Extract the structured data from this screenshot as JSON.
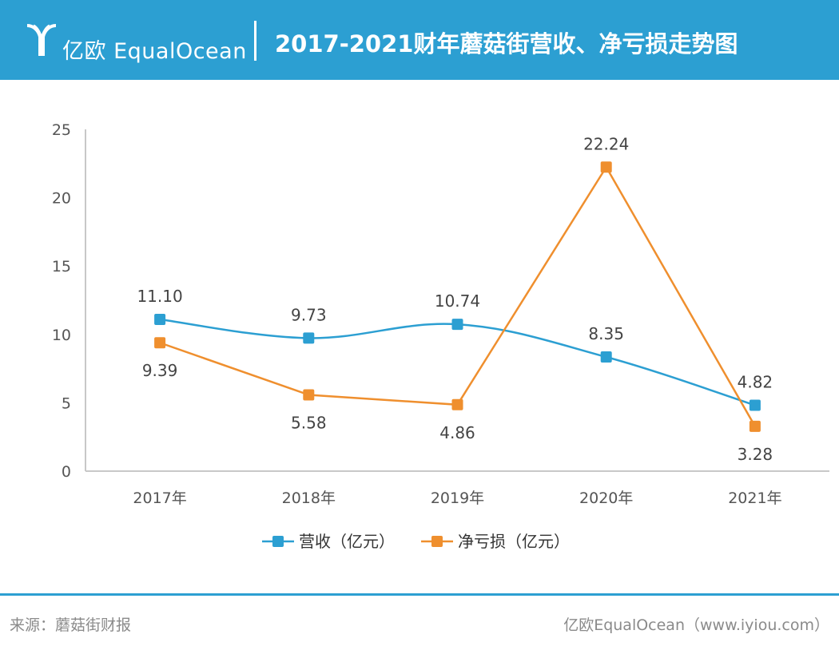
{
  "header": {
    "brand": "亿欧 EqualOcean",
    "title": "2017-2021财年蘑菇街营收、净亏损走势图"
  },
  "chart_data": {
    "type": "line",
    "title": "2017-2021财年蘑菇街营收、净亏损走势图",
    "categories": [
      "2017年",
      "2018年",
      "2019年",
      "2020年",
      "2021年"
    ],
    "ylim": [
      0,
      25
    ],
    "yticks": [
      0,
      5,
      10,
      15,
      20,
      25
    ],
    "grid": false,
    "legend": "bottom",
    "series": [
      {
        "name": "营收（亿元）",
        "color": "#2c9fd2",
        "smooth": true,
        "values": [
          11.1,
          9.73,
          10.74,
          8.35,
          4.82
        ],
        "labels": [
          "11.10",
          "9.73",
          "10.74",
          "8.35",
          "4.82"
        ],
        "label_pos": "above"
      },
      {
        "name": "净亏损（亿元）",
        "color": "#ef8f2e",
        "smooth": false,
        "values": [
          9.39,
          5.58,
          4.86,
          22.24,
          3.28
        ],
        "labels": [
          "9.39",
          "5.58",
          "4.86",
          "22.24",
          "3.28"
        ],
        "label_pos": "below_except_peak"
      }
    ]
  },
  "footer": {
    "source": "来源：蘑菇街财报",
    "credit": "亿欧EqualOcean（www.iyiou.com）"
  }
}
